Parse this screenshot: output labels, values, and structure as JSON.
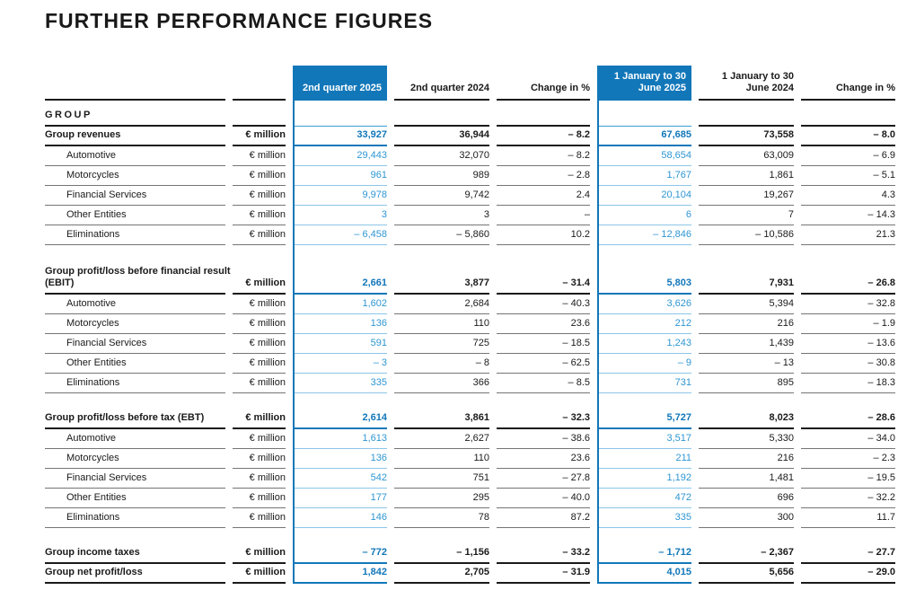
{
  "title": "FURTHER PERFORMANCE FIGURES",
  "colors": {
    "header_highlight": "#1277b9",
    "value_blue": "#2e96d2",
    "rule_dark": "#1a1a1a",
    "rule_gray": "#757575",
    "rule_blue_light": "#8cc6e8",
    "text": "#1a1a1a"
  },
  "header": {
    "q2_2025": "2nd quarter 2025",
    "q2_2024": "2nd quarter 2024",
    "change_q2": "Change in %",
    "h1_2025": "1 January to 30 June 2025",
    "h1_2024": "1 January to 30 June 2024",
    "change_h1": "Change in %"
  },
  "table": {
    "rows": [
      {
        "type": "ghead",
        "label": "GROUP"
      },
      {
        "type": "bold",
        "label": "Group revenues",
        "unit": "€ million",
        "values": [
          "33,927",
          "36,944",
          "– 8.2",
          "67,685",
          "73,558",
          "– 8.0"
        ]
      },
      {
        "type": "sub",
        "label": "Automotive",
        "unit": "€ million",
        "values": [
          "29,443",
          "32,070",
          "– 8.2",
          "58,654",
          "63,009",
          "– 6.9"
        ]
      },
      {
        "type": "sub",
        "label": "Motorcycles",
        "unit": "€ million",
        "values": [
          "961",
          "989",
          "– 2.8",
          "1,767",
          "1,861",
          "– 5.1"
        ]
      },
      {
        "type": "sub",
        "label": "Financial Services",
        "unit": "€ million",
        "values": [
          "9,978",
          "9,742",
          "2.4",
          "20,104",
          "19,267",
          "4.3"
        ]
      },
      {
        "type": "sub",
        "label": "Other Entities",
        "unit": "€ million",
        "values": [
          "3",
          "3",
          "–",
          "6",
          "7",
          "– 14.3"
        ]
      },
      {
        "type": "sub",
        "label": "Eliminations",
        "unit": "€ million",
        "values": [
          "– 6,458",
          "– 5,860",
          "10.2",
          "– 12,846",
          "– 10,586",
          "21.3"
        ]
      },
      {
        "type": "gap"
      },
      {
        "type": "bold",
        "label": "Group profit/loss before financial result",
        "label2": "(EBIT)",
        "unit": "€ million",
        "values": [
          "2,661",
          "3,877",
          "– 31.4",
          "5,803",
          "7,931",
          "– 26.8"
        ]
      },
      {
        "type": "sub",
        "label": "Automotive",
        "unit": "€ million",
        "values": [
          "1,602",
          "2,684",
          "– 40.3",
          "3,626",
          "5,394",
          "– 32.8"
        ]
      },
      {
        "type": "sub",
        "label": "Motorcycles",
        "unit": "€ million",
        "values": [
          "136",
          "110",
          "23.6",
          "212",
          "216",
          "– 1.9"
        ]
      },
      {
        "type": "sub",
        "label": "Financial Services",
        "unit": "€ million",
        "values": [
          "591",
          "725",
          "– 18.5",
          "1,243",
          "1,439",
          "– 13.6"
        ]
      },
      {
        "type": "sub",
        "label": "Other Entities",
        "unit": "€ million",
        "values": [
          "– 3",
          "– 8",
          "– 62.5",
          "– 9",
          "– 13",
          "– 30.8"
        ]
      },
      {
        "type": "sub",
        "label": "Eliminations",
        "unit": "€ million",
        "values": [
          "335",
          "366",
          "– 8.5",
          "731",
          "895",
          "– 18.3"
        ]
      },
      {
        "type": "gap"
      },
      {
        "type": "bold",
        "label": "Group profit/loss before tax (EBT)",
        "unit": "€ million",
        "values": [
          "2,614",
          "3,861",
          "– 32.3",
          "5,727",
          "8,023",
          "– 28.6"
        ]
      },
      {
        "type": "sub",
        "label": "Automotive",
        "unit": "€ million",
        "values": [
          "1,613",
          "2,627",
          "– 38.6",
          "3,517",
          "5,330",
          "– 34.0"
        ]
      },
      {
        "type": "sub",
        "label": "Motorcycles",
        "unit": "€ million",
        "values": [
          "136",
          "110",
          "23.6",
          "211",
          "216",
          "– 2.3"
        ]
      },
      {
        "type": "sub",
        "label": "Financial Services",
        "unit": "€ million",
        "values": [
          "542",
          "751",
          "– 27.8",
          "1,192",
          "1,481",
          "– 19.5"
        ]
      },
      {
        "type": "sub",
        "label": "Other Entities",
        "unit": "€ million",
        "values": [
          "177",
          "295",
          "– 40.0",
          "472",
          "696",
          "– 32.2"
        ]
      },
      {
        "type": "sub",
        "label": "Eliminations",
        "unit": "€ million",
        "values": [
          "146",
          "78",
          "87.2",
          "335",
          "300",
          "11.7"
        ]
      },
      {
        "type": "gap"
      },
      {
        "type": "bold",
        "label": "Group income taxes",
        "unit": "€ million",
        "values": [
          "– 772",
          "– 1,156",
          "– 33.2",
          "– 1,712",
          "– 2,367",
          "– 27.7"
        ]
      },
      {
        "type": "bold",
        "label": "Group net profit/loss",
        "unit": "€ million",
        "values": [
          "1,842",
          "2,705",
          "– 31.9",
          "4,015",
          "5,656",
          "– 29.0"
        ]
      }
    ]
  }
}
